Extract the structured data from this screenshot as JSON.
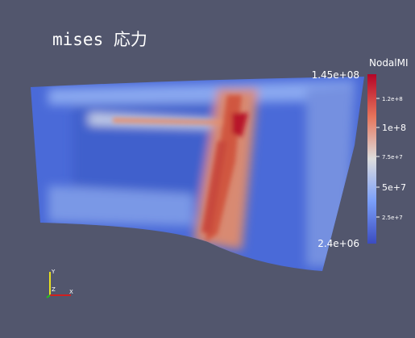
{
  "title": "mises 応力",
  "colorbar": {
    "title": "NodalMI",
    "max_label": "1.45e+08",
    "min_label": "2.4e+06",
    "tick_labels": [
      "1.2e+8",
      "1e+8",
      "7.5e+7",
      "5e+7",
      "2.5e+7"
    ]
  },
  "axes": {
    "y": "Y",
    "z": "Z",
    "x": "X"
  }
}
